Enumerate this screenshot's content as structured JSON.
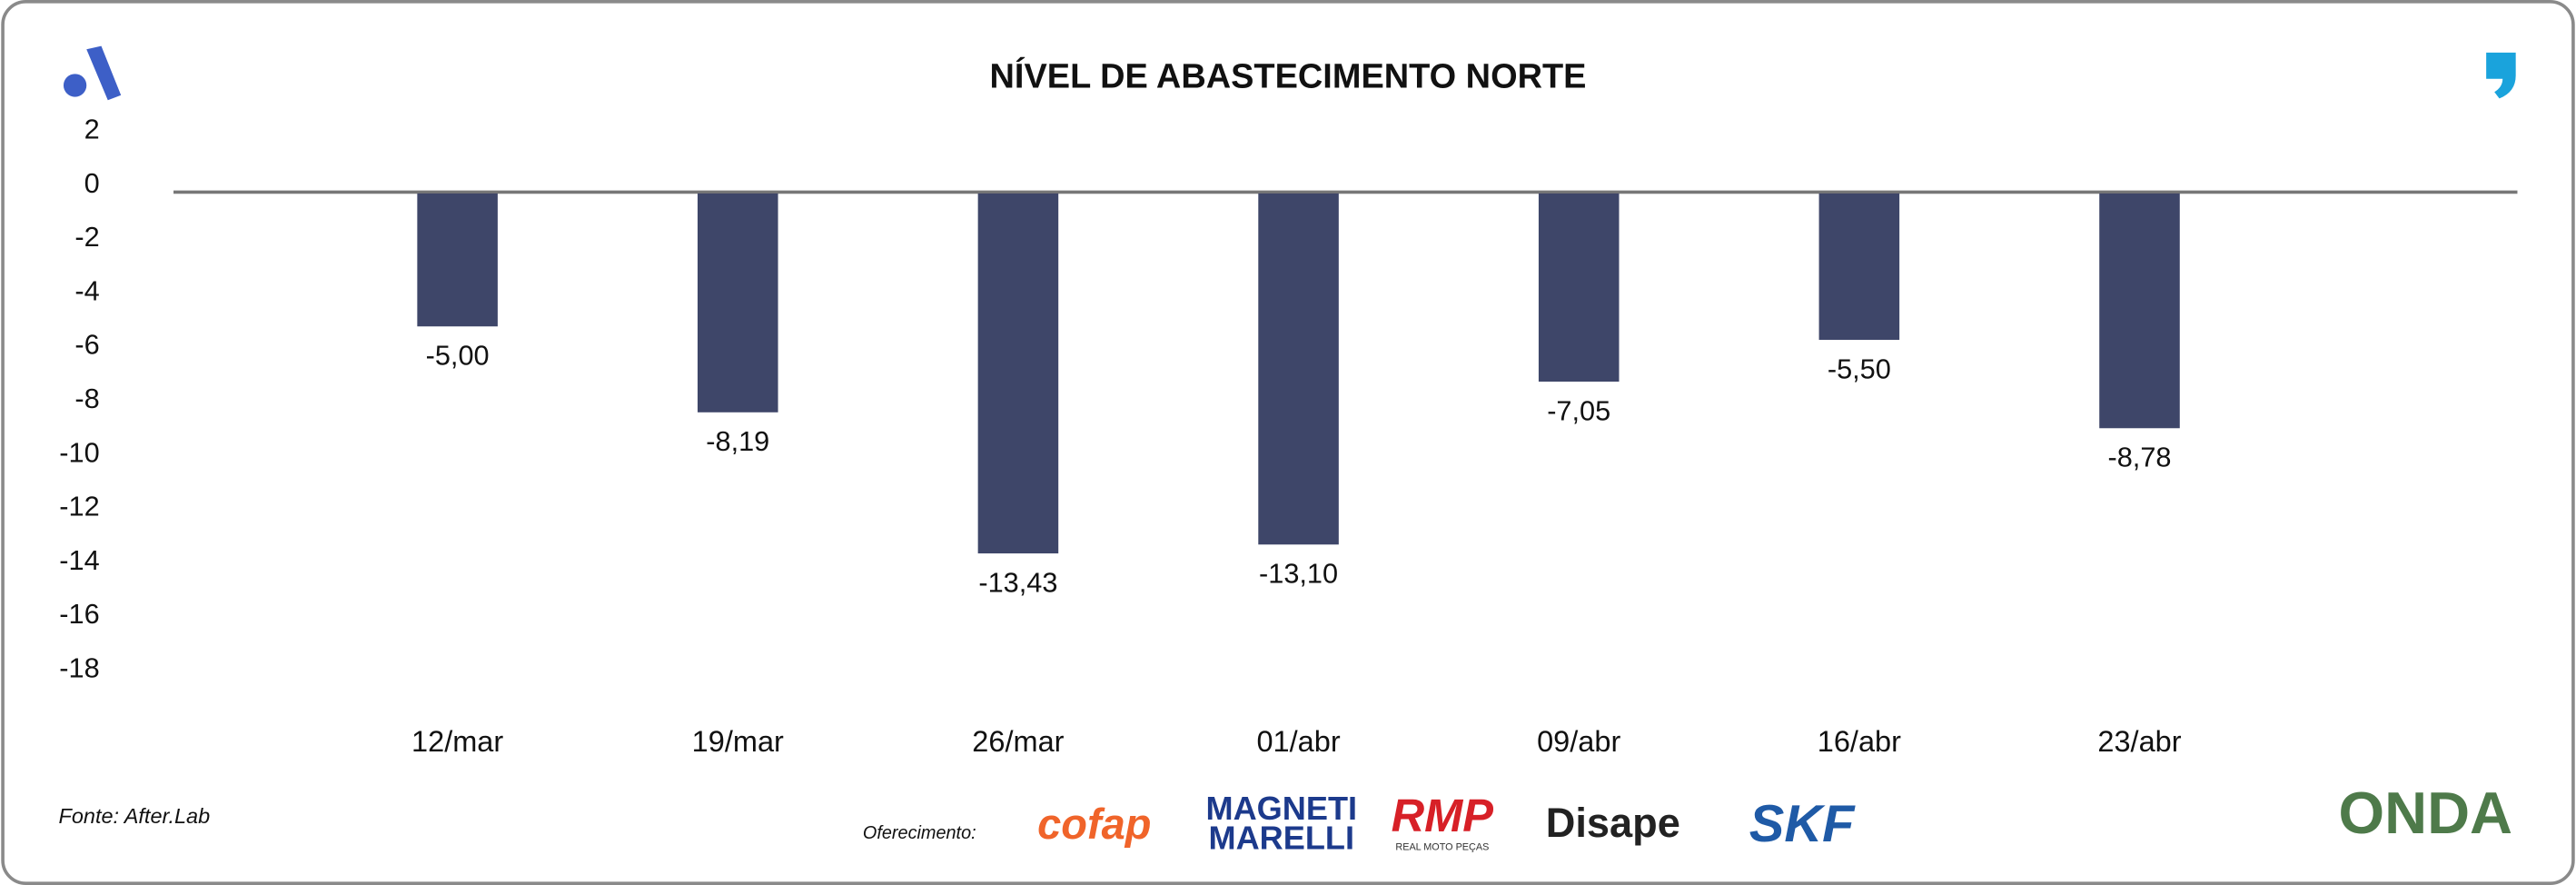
{
  "chart_data": {
    "type": "bar",
    "title": "NÍVEL DE ABASTECIMENTO NORTE",
    "categories": [
      "12/mar",
      "19/mar",
      "26/mar",
      "01/abr",
      "09/abr",
      "16/abr",
      "23/abr"
    ],
    "values": [
      -5.0,
      -8.19,
      -13.43,
      -13.1,
      -7.05,
      -5.5,
      -8.78
    ],
    "value_labels": [
      "-5,00",
      "-8,19",
      "-13,43",
      "-13,10",
      "-7,05",
      "-5,50",
      "-8,78"
    ],
    "color": "#3e4669",
    "ylim": [
      -18,
      2
    ],
    "yticks": [
      2,
      0,
      -2,
      -4,
      -6,
      -8,
      -10,
      -12,
      -14,
      -16,
      -18
    ],
    "source": "Fonte: After.Lab"
  },
  "footer": {
    "sponsor_label": "Oferecimento:",
    "sponsors": [
      "cofap",
      "MAGNETI",
      "MARELLI",
      "RMP",
      "REAL MOTO PEÇAS",
      "Disape",
      "SKF"
    ],
    "brand": "ONDA"
  }
}
